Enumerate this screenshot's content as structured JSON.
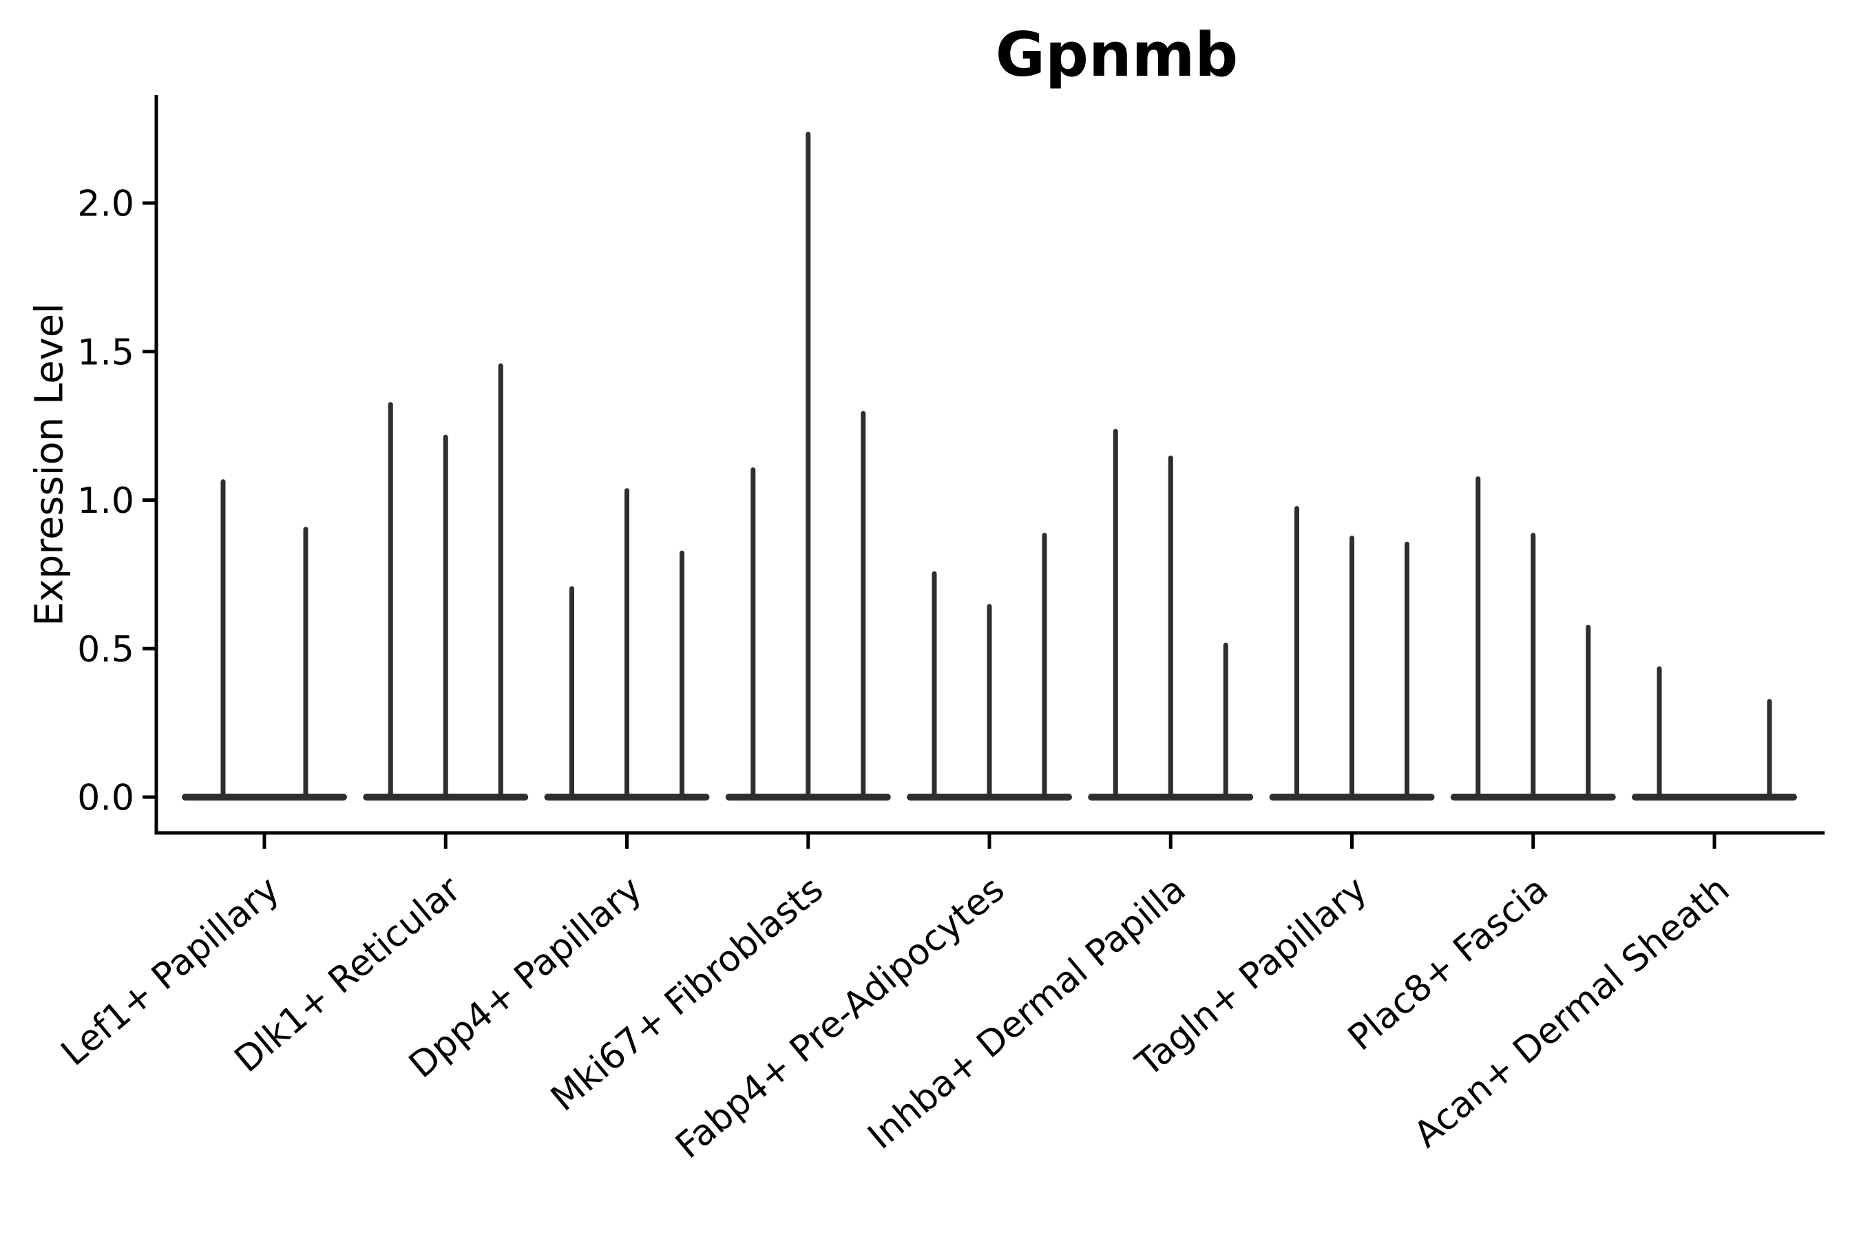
{
  "figure": {
    "title": "Gpnmb",
    "background_color": "#ffffff"
  },
  "chart_data": {
    "type": "violin",
    "title": "Gpnmb",
    "subtitle": "",
    "xlabel": "",
    "ylabel": "Expression Level",
    "ylim": [
      -0.13,
      2.36
    ],
    "grid": false,
    "legend": false,
    "ytick_labels": [
      "0.0",
      "0.5",
      "1.0",
      "1.5",
      "2.0"
    ],
    "ytick_values": [
      0.0,
      0.5,
      1.0,
      1.5,
      2.0
    ],
    "xtick_rotation_deg": 40,
    "categories": [
      "Lef1+ Papillary",
      "Dlk1+ Reticular",
      "Dpp4+ Papillary",
      "Mki67+ Fibroblasts",
      "Fabp4+ Pre-Adipocytes",
      "Inhba+ Dermal Papilla",
      "Tagln+ Papillary",
      "Plac8+ Fascia",
      "Acan+ Dermal Sheath"
    ],
    "groups": [
      {
        "label": "Lef1+ Papillary",
        "violin_max_values": [
          1.07,
          0.91
        ]
      },
      {
        "label": "Dlk1+ Reticular",
        "violin_max_values": [
          1.33,
          1.22,
          1.46
        ]
      },
      {
        "label": "Dpp4+ Papillary",
        "violin_max_values": [
          0.71,
          1.04,
          0.83
        ]
      },
      {
        "label": "Mki67+ Fibroblasts",
        "violin_max_values": [
          1.11,
          2.24,
          1.3
        ]
      },
      {
        "label": "Fabp4+ Pre-Adipocytes",
        "violin_max_values": [
          0.76,
          0.65,
          0.89
        ]
      },
      {
        "label": "Inhba+ Dermal Papilla",
        "violin_max_values": [
          1.24,
          1.15,
          0.52
        ]
      },
      {
        "label": "Tagln+ Papillary",
        "violin_max_values": [
          0.98,
          0.88,
          0.86
        ]
      },
      {
        "label": "Plac8+ Fascia",
        "violin_max_values": [
          1.08,
          0.89,
          0.58
        ]
      },
      {
        "label": "Acan+ Dermal Sheath",
        "violin_max_values": [
          0.44,
          0,
          0.33
        ]
      }
    ],
    "colors": {
      "violin": "#2e2e2e",
      "axis": "#000000",
      "text": "#000000",
      "background": "#ffffff"
    }
  }
}
